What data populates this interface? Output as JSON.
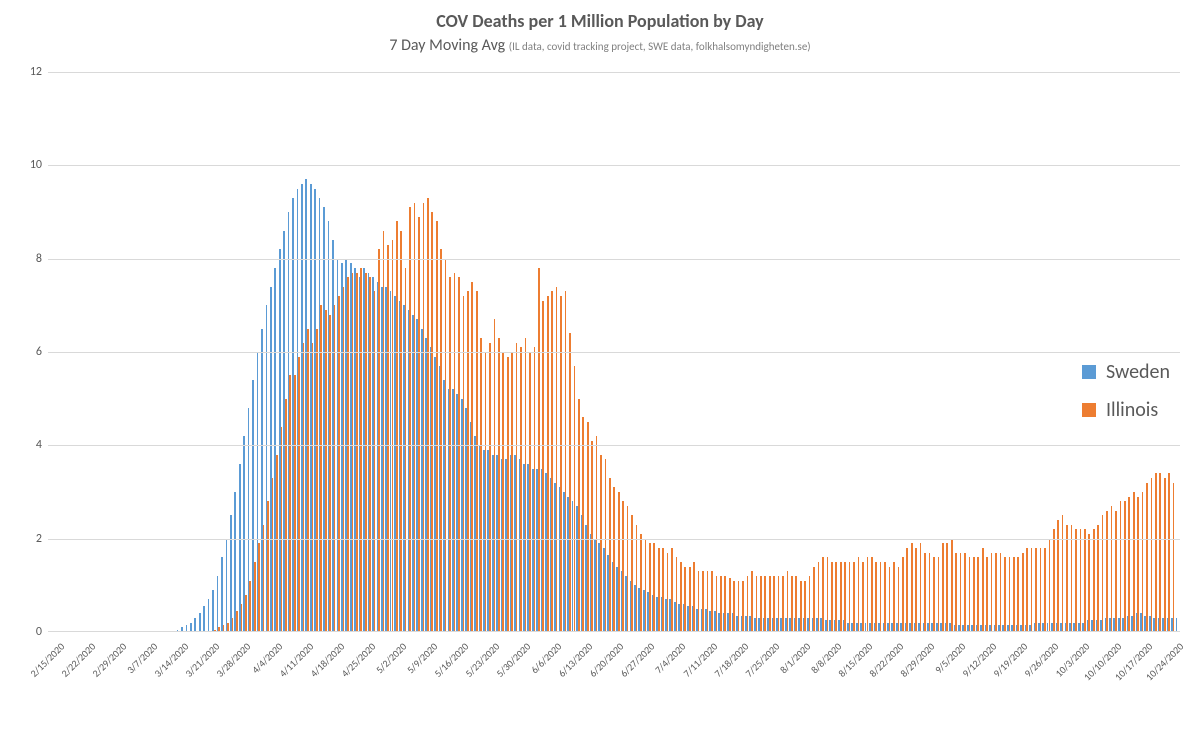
{
  "chart": {
    "type": "bar",
    "title": "COV Deaths per 1 Million Population by Day",
    "title_fontsize": 18,
    "subtitle_main": "7 Day Moving Avg",
    "subtitle_small": "(IL data, covid tracking project, SWE data, folkhalsomyndigheten.se)",
    "subtitle_fontsize": 16,
    "background_color": "#ffffff",
    "grid_color": "#d9d9d9",
    "text_color": "#595959",
    "ylim": [
      0,
      12
    ],
    "ytick_step": 2,
    "yticks": [
      0,
      2,
      4,
      6,
      8,
      10,
      12
    ],
    "x_labels": [
      "2/15/2020",
      "2/22/2020",
      "2/29/2020",
      "3/7/2020",
      "3/14/2020",
      "3/21/2020",
      "3/28/2020",
      "4/4/2020",
      "4/11/2020",
      "4/18/2020",
      "4/25/2020",
      "5/2/2020",
      "5/9/2020",
      "5/16/2020",
      "5/23/2020",
      "5/30/2020",
      "6/6/2020",
      "6/13/2020",
      "6/20/2020",
      "6/27/2020",
      "7/4/2020",
      "7/11/2020",
      "7/18/2020",
      "7/25/2020",
      "8/1/2020",
      "8/8/2020",
      "8/15/2020",
      "8/22/2020",
      "8/29/2020",
      "9/5/2020",
      "9/12/2020",
      "9/19/2020",
      "9/26/2020",
      "10/3/2020",
      "10/10/2020",
      "10/17/2020",
      "10/24/2020"
    ],
    "series": [
      {
        "name": "Sweden",
        "color": "#5b9bd5",
        "values": [
          0,
          0,
          0,
          0,
          0,
          0,
          0,
          0,
          0,
          0,
          0,
          0,
          0,
          0,
          0,
          0,
          0,
          0,
          0,
          0,
          0,
          0,
          0,
          0,
          0,
          0,
          0,
          0,
          0,
          0.05,
          0.1,
          0.15,
          0.2,
          0.3,
          0.4,
          0.55,
          0.7,
          0.9,
          1.2,
          1.6,
          2.0,
          2.5,
          3.0,
          3.6,
          4.2,
          4.8,
          5.4,
          6.0,
          6.5,
          7.0,
          7.4,
          7.8,
          8.2,
          8.6,
          9.0,
          9.3,
          9.5,
          9.6,
          9.7,
          9.6,
          9.5,
          9.3,
          9.1,
          8.8,
          8.4,
          8.0,
          7.9,
          8.0,
          7.9,
          7.8,
          7.6,
          7.8,
          7.7,
          7.6,
          7.5,
          7.4,
          7.4,
          7.3,
          7.2,
          7.1,
          7.0,
          6.9,
          6.8,
          6.7,
          6.5,
          6.3,
          6.1,
          5.9,
          5.7,
          5.4,
          5.2,
          5.2,
          5.1,
          5.0,
          4.8,
          4.5,
          4.2,
          4.0,
          3.9,
          3.9,
          3.8,
          3.8,
          3.7,
          3.7,
          3.8,
          3.8,
          3.7,
          3.6,
          3.6,
          3.5,
          3.5,
          3.5,
          3.4,
          3.3,
          3.2,
          3.1,
          3.0,
          2.9,
          2.8,
          2.7,
          2.5,
          2.3,
          2.1,
          2.0,
          1.9,
          1.8,
          1.65,
          1.5,
          1.4,
          1.3,
          1.2,
          1.1,
          1.0,
          0.95,
          0.9,
          0.85,
          0.8,
          0.75,
          0.75,
          0.7,
          0.7,
          0.65,
          0.6,
          0.6,
          0.55,
          0.55,
          0.5,
          0.5,
          0.5,
          0.45,
          0.45,
          0.4,
          0.4,
          0.4,
          0.4,
          0.35,
          0.35,
          0.35,
          0.35,
          0.3,
          0.3,
          0.3,
          0.3,
          0.3,
          0.3,
          0.3,
          0.3,
          0.3,
          0.3,
          0.3,
          0.3,
          0.3,
          0.3,
          0.3,
          0.3,
          0.25,
          0.25,
          0.25,
          0.25,
          0.25,
          0.2,
          0.2,
          0.2,
          0.2,
          0.2,
          0.2,
          0.2,
          0.2,
          0.2,
          0.2,
          0.2,
          0.2,
          0.2,
          0.2,
          0.2,
          0.2,
          0.2,
          0.2,
          0.2,
          0.2,
          0.2,
          0.2,
          0.2,
          0.2,
          0.15,
          0.15,
          0.15,
          0.15,
          0.15,
          0.15,
          0.15,
          0.15,
          0.15,
          0.15,
          0.15,
          0.15,
          0.15,
          0.15,
          0.15,
          0.15,
          0.15,
          0.15,
          0.2,
          0.2,
          0.2,
          0.2,
          0.2,
          0.2,
          0.2,
          0.2,
          0.2,
          0.2,
          0.2,
          0.2,
          0.25,
          0.25,
          0.25,
          0.25,
          0.3,
          0.3,
          0.3,
          0.3,
          0.3,
          0.35,
          0.35,
          0.4,
          0.4,
          0.35,
          0.35,
          0.3,
          0.3,
          0.3,
          0.3,
          0.3,
          0.3
        ]
      },
      {
        "name": "Illinois",
        "color": "#ed7d31",
        "values": [
          0,
          0,
          0,
          0,
          0,
          0,
          0,
          0,
          0,
          0,
          0,
          0,
          0,
          0,
          0,
          0,
          0,
          0,
          0,
          0,
          0,
          0,
          0,
          0,
          0,
          0,
          0,
          0,
          0,
          0,
          0,
          0,
          0,
          0,
          0,
          0,
          0,
          0.05,
          0.1,
          0.15,
          0.2,
          0.3,
          0.45,
          0.6,
          0.8,
          1.1,
          1.5,
          1.9,
          2.3,
          2.8,
          3.3,
          3.8,
          4.4,
          5.0,
          5.5,
          5.5,
          5.9,
          6.2,
          6.5,
          6.2,
          6.5,
          7.0,
          6.9,
          6.8,
          7.0,
          7.2,
          7.4,
          7.6,
          7.7,
          7.7,
          7.8,
          7.7,
          7.6,
          7.3,
          8.2,
          8.6,
          8.3,
          8.4,
          8.8,
          8.6,
          7.8,
          9.1,
          9.2,
          8.9,
          9.2,
          9.3,
          9.0,
          8.8,
          8.2,
          8.0,
          7.6,
          7.7,
          7.6,
          7.2,
          7.3,
          7.5,
          7.3,
          6.3,
          6.0,
          6.2,
          6.7,
          6.3,
          6.0,
          5.9,
          6.0,
          6.2,
          6.1,
          6.3,
          6.0,
          6.1,
          7.8,
          7.1,
          7.2,
          7.3,
          7.4,
          7.2,
          7.3,
          6.4,
          5.7,
          5.0,
          4.6,
          4.5,
          4.1,
          4.2,
          3.8,
          3.7,
          3.3,
          3.1,
          3.0,
          2.8,
          2.7,
          2.5,
          2.3,
          2.1,
          2.0,
          1.9,
          1.9,
          1.8,
          1.8,
          1.7,
          1.8,
          1.6,
          1.5,
          1.4,
          1.4,
          1.5,
          1.3,
          1.3,
          1.3,
          1.3,
          1.2,
          1.2,
          1.2,
          1.15,
          1.1,
          1.1,
          1.1,
          1.2,
          1.3,
          1.2,
          1.2,
          1.2,
          1.2,
          1.2,
          1.2,
          1.2,
          1.3,
          1.2,
          1.2,
          1.1,
          1.1,
          1.2,
          1.4,
          1.5,
          1.6,
          1.6,
          1.5,
          1.5,
          1.5,
          1.5,
          1.5,
          1.5,
          1.6,
          1.5,
          1.6,
          1.6,
          1.5,
          1.5,
          1.5,
          1.4,
          1.5,
          1.4,
          1.6,
          1.8,
          1.9,
          1.8,
          1.9,
          1.7,
          1.7,
          1.6,
          1.6,
          1.9,
          1.9,
          2.0,
          1.7,
          1.7,
          1.7,
          1.6,
          1.6,
          1.6,
          1.8,
          1.6,
          1.7,
          1.7,
          1.7,
          1.6,
          1.6,
          1.6,
          1.6,
          1.7,
          1.8,
          1.8,
          1.8,
          1.8,
          1.8,
          2.0,
          2.2,
          2.4,
          2.5,
          2.3,
          2.3,
          2.2,
          2.2,
          2.2,
          2.1,
          2.2,
          2.3,
          2.5,
          2.6,
          2.7,
          2.6,
          2.8,
          2.8,
          2.9,
          3.0,
          2.9,
          3.0,
          3.2,
          3.3,
          3.4,
          3.4,
          3.3,
          3.4,
          3.2
        ]
      }
    ],
    "legend": {
      "items": [
        {
          "label": "Sweden",
          "color": "#5b9bd5"
        },
        {
          "label": "Illinois",
          "color": "#ed7d31"
        }
      ]
    }
  }
}
